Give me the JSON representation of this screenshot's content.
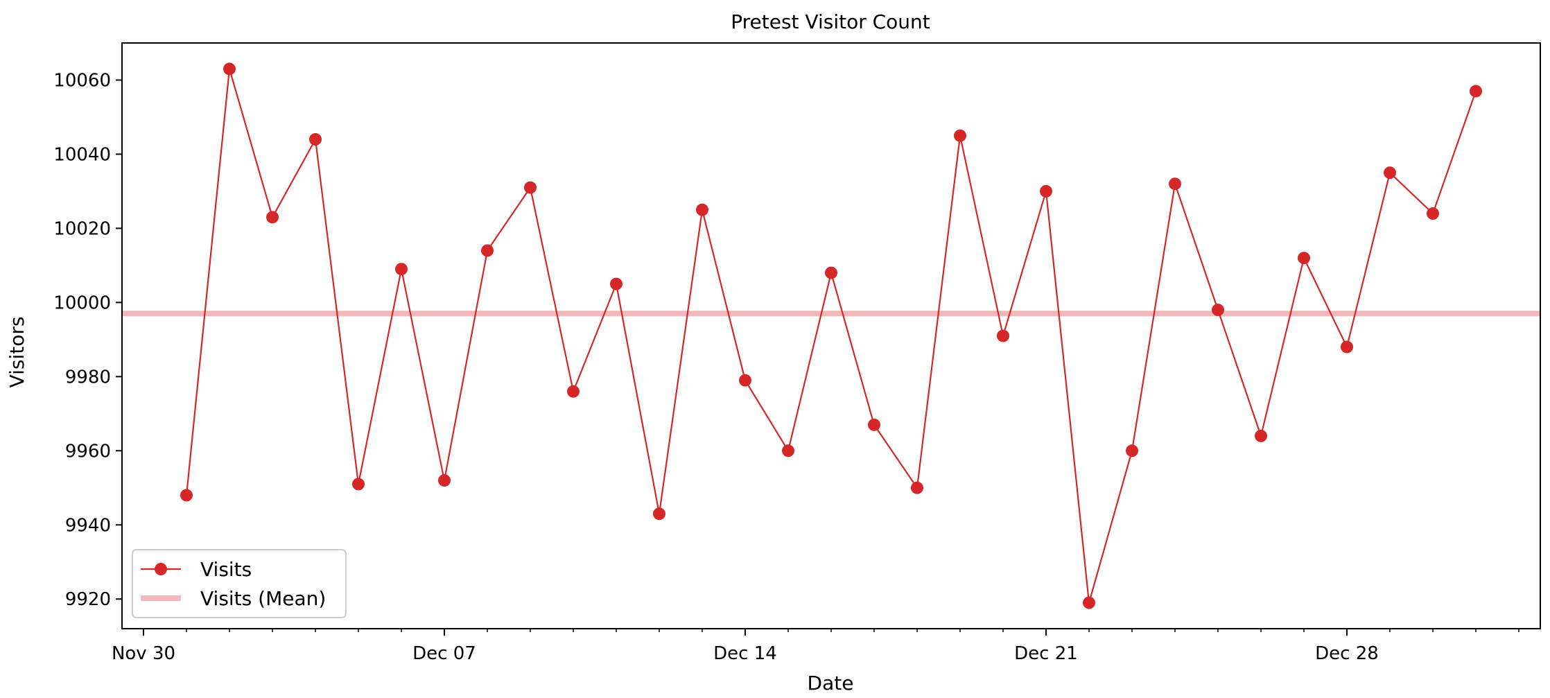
{
  "chart_data": {
    "type": "line",
    "title": "Pretest Visitor Count",
    "xlabel": "Date",
    "ylabel": "Visitors",
    "x": [
      "Dec 01",
      "Dec 02",
      "Dec 03",
      "Dec 04",
      "Dec 05",
      "Dec 06",
      "Dec 07",
      "Dec 08",
      "Dec 09",
      "Dec 10",
      "Dec 11",
      "Dec 12",
      "Dec 13",
      "Dec 14",
      "Dec 15",
      "Dec 16",
      "Dec 17",
      "Dec 18",
      "Dec 19",
      "Dec 20",
      "Dec 21",
      "Dec 22",
      "Dec 23",
      "Dec 24",
      "Dec 25",
      "Dec 26",
      "Dec 27",
      "Dec 28",
      "Dec 29",
      "Dec 30",
      "Dec 31"
    ],
    "x_tick_labels": [
      "Nov 30",
      "Dec 07",
      "Dec 14",
      "Dec 21",
      "Dec 28"
    ],
    "xlim": [
      "Nov 29.5",
      "Jan 01.5"
    ],
    "y_ticks": [
      9920,
      9940,
      9960,
      9980,
      10000,
      10020,
      10040,
      10060
    ],
    "ylim": [
      9912,
      10070
    ],
    "grid": false,
    "legend_position": "bottom-left",
    "series": [
      {
        "name": "Visits",
        "color": "#d62728",
        "marker": "circle",
        "values": [
          9948,
          10063,
          10023,
          10044,
          9951,
          10009,
          9952,
          10014,
          10031,
          9976,
          10005,
          9943,
          10025,
          9979,
          9960,
          10008,
          9967,
          9950,
          10045,
          9991,
          10030,
          9919,
          9960,
          10032,
          9998,
          9964,
          10012,
          9988,
          10035,
          10024,
          10057
        ]
      },
      {
        "name": "Visits (Mean)",
        "color": "#f0b8b8",
        "style": "horizontal-line",
        "value": 9997
      }
    ]
  }
}
